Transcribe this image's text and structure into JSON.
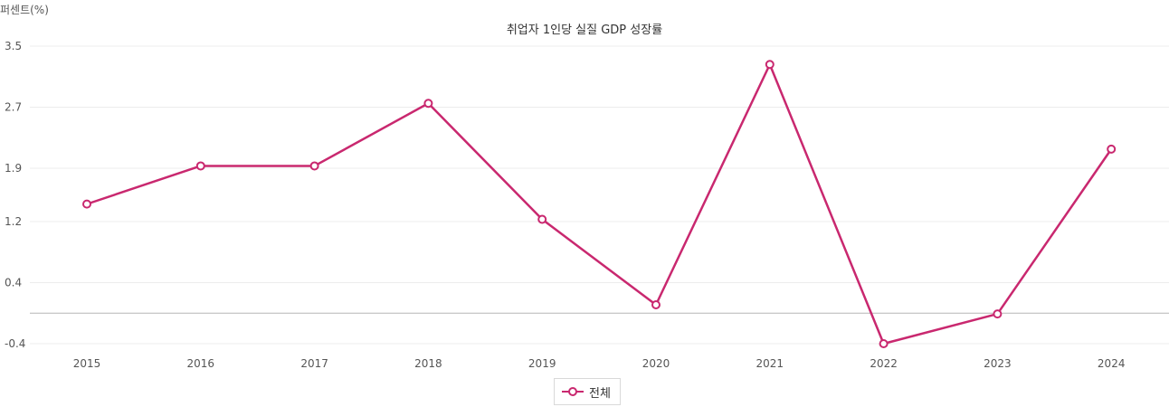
{
  "chart_data": {
    "type": "line",
    "title": "취업자 1인당 실질 GDP 성장률",
    "ylabel": "퍼센트(%)",
    "xlabel": "",
    "categories": [
      "2015",
      "2016",
      "2017",
      "2018",
      "2019",
      "2020",
      "2021",
      "2022",
      "2023",
      "2024"
    ],
    "series": [
      {
        "name": "전체",
        "values": [
          1.43,
          1.93,
          1.93,
          2.75,
          1.23,
          0.11,
          3.26,
          -0.4,
          -0.01,
          2.15
        ]
      }
    ],
    "ylim": [
      -0.4,
      3.5
    ],
    "yticks": [
      "3.5",
      "2.7",
      "1.9",
      "1.2",
      "0.4",
      "-0.4"
    ],
    "ytick_values": [
      3.5,
      2.7,
      1.9,
      1.2,
      0.4,
      -0.4
    ],
    "baseline": 0,
    "grid": "horizontal",
    "legend_position": "bottom-center",
    "line_color": "#c9286f",
    "marker_fill": "#ffffff"
  }
}
